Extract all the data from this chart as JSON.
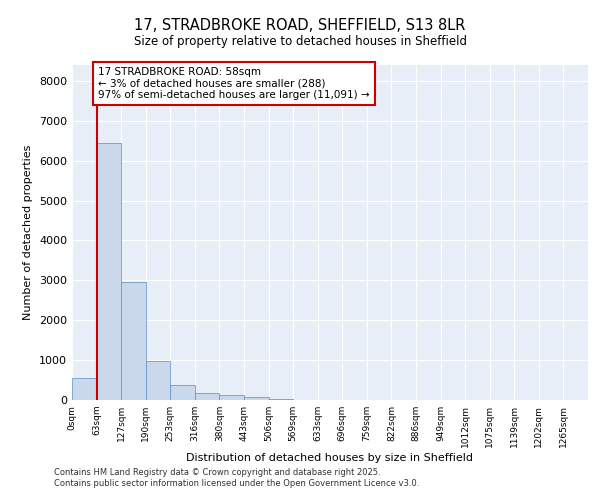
{
  "title1": "17, STRADBROKE ROAD, SHEFFIELD, S13 8LR",
  "title2": "Size of property relative to detached houses in Sheffield",
  "xlabel": "Distribution of detached houses by size in Sheffield",
  "ylabel": "Number of detached properties",
  "bin_labels": [
    "0sqm",
    "63sqm",
    "127sqm",
    "190sqm",
    "253sqm",
    "316sqm",
    "380sqm",
    "443sqm",
    "506sqm",
    "569sqm",
    "633sqm",
    "696sqm",
    "759sqm",
    "822sqm",
    "886sqm",
    "949sqm",
    "1012sqm",
    "1075sqm",
    "1139sqm",
    "1202sqm",
    "1265sqm"
  ],
  "bar_heights": [
    550,
    6450,
    2950,
    990,
    380,
    175,
    125,
    75,
    15,
    0,
    0,
    0,
    0,
    0,
    0,
    0,
    0,
    0,
    0,
    0,
    0
  ],
  "bar_color": "#c9d9eb",
  "bar_edge_color": "#5b8ec9",
  "background_color": "#e8eef7",
  "grid_color": "#ffffff",
  "vline_color": "#cc0000",
  "annotation_text": "17 STRADBROKE ROAD: 58sqm\n← 3% of detached houses are smaller (288)\n97% of semi-detached houses are larger (11,091) →",
  "annotation_box_color": "#ffffff",
  "annotation_box_edge": "#cc0000",
  "ylim": [
    0,
    8400
  ],
  "yticks": [
    0,
    1000,
    2000,
    3000,
    4000,
    5000,
    6000,
    7000,
    8000
  ],
  "footer1": "Contains HM Land Registry data © Crown copyright and database right 2025.",
  "footer2": "Contains public sector information licensed under the Open Government Licence v3.0."
}
